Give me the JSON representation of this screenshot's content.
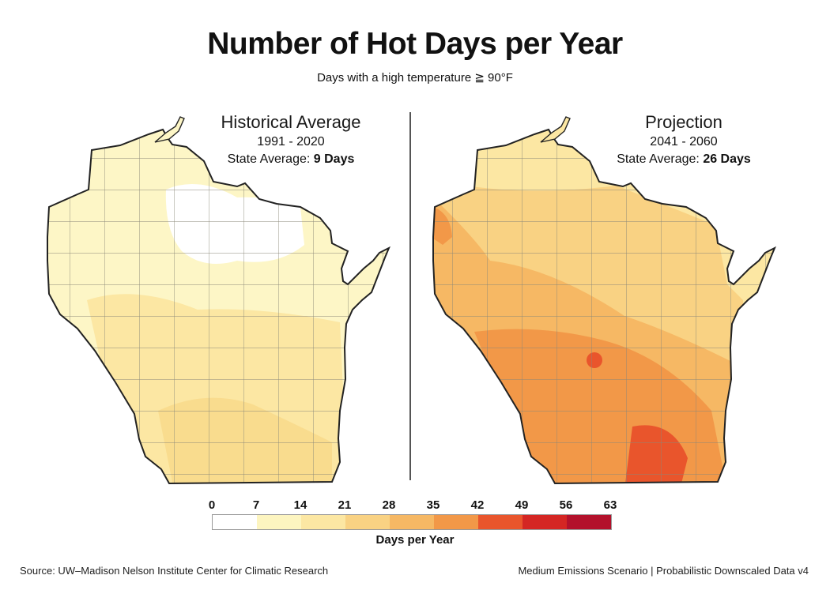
{
  "title": "Number of Hot Days per Year",
  "subtitle": "Days with a high temperature ≧ 90°F",
  "left_panel": {
    "title": "Historical Average",
    "years": "1991 - 2020",
    "avg_label": "State Average: ",
    "avg_value": "9 Days"
  },
  "right_panel": {
    "title": "Projection",
    "years": "2041 - 2060",
    "avg_label": "State Average: ",
    "avg_value": "26 Days"
  },
  "legend": {
    "ticks": [
      "0",
      "7",
      "14",
      "21",
      "28",
      "35",
      "42",
      "49",
      "56",
      "63"
    ],
    "colors": [
      "#ffffff",
      "#fdf5c0",
      "#fce7a3",
      "#f9d283",
      "#f6b864",
      "#f29848",
      "#e9552c",
      "#d42623",
      "#b3112b",
      "#7d0a1a"
    ],
    "label": "Days per Year"
  },
  "footer": {
    "source": "Source: UW–Madison Nelson Institute Center for Climatic Research",
    "scenario": "Medium Emissions Scenario | Probabilistic Downscaled Data v4"
  }
}
